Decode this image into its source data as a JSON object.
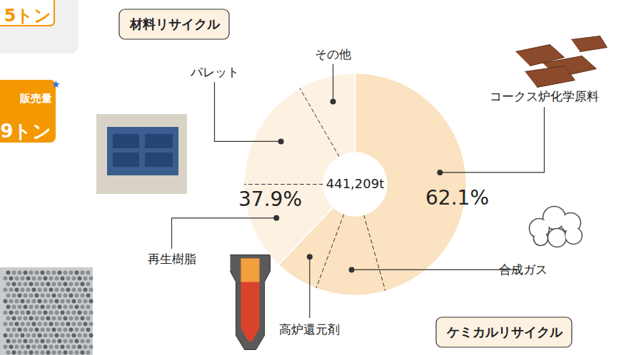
{
  "chart_data": {
    "type": "pie",
    "categories": [
      "コークス炉化学原料",
      "合成ガス",
      "高炉還元剤",
      "再生樹脂",
      "パレット",
      "その他"
    ],
    "values": [
      45.6,
      10.1,
      6.4,
      12.9,
      16.7,
      8.3
    ],
    "groups": [
      {
        "name": "ケミカルリサイクル",
        "value": 62.1,
        "value_label": "62.1%",
        "color": "#fbe2c0",
        "categories": [
          "コークス炉化学原料",
          "合成ガス",
          "高炉還元剤"
        ]
      },
      {
        "name": "材料リサイクル",
        "value": 37.9,
        "value_label": "37.9%",
        "color": "#fdf1e2",
        "categories": [
          "再生樹脂",
          "パレット",
          "その他"
        ]
      }
    ],
    "total": {
      "value": 441209,
      "label": "441,209t"
    },
    "fragments": [
      "5トン",
      "販売量",
      "9トン",
      "★"
    ]
  }
}
